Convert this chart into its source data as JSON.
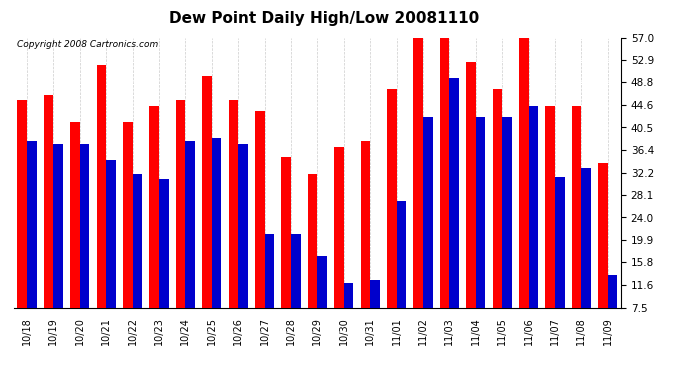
{
  "title": "Dew Point Daily High/Low 20081110",
  "copyright": "Copyright 2008 Cartronics.com",
  "categories": [
    "10/18",
    "10/19",
    "10/20",
    "10/21",
    "10/22",
    "10/23",
    "10/24",
    "10/25",
    "10/26",
    "10/27",
    "10/28",
    "10/29",
    "10/30",
    "10/31",
    "11/01",
    "11/02",
    "11/03",
    "11/04",
    "11/05",
    "11/06",
    "11/07",
    "11/08",
    "11/09"
  ],
  "highs": [
    45.5,
    46.5,
    41.5,
    52.0,
    41.5,
    44.5,
    45.5,
    50.0,
    45.5,
    43.5,
    35.0,
    32.0,
    37.0,
    38.0,
    47.5,
    57.0,
    57.0,
    52.5,
    47.5,
    57.0,
    44.5,
    44.5,
    34.0
  ],
  "lows": [
    38.0,
    37.5,
    37.5,
    34.5,
    32.0,
    31.0,
    38.0,
    38.5,
    37.5,
    21.0,
    21.0,
    17.0,
    12.0,
    12.5,
    27.0,
    42.5,
    49.5,
    42.5,
    42.5,
    44.5,
    31.5,
    33.0,
    13.5
  ],
  "ymin": 7.5,
  "ymax": 57.0,
  "yticks": [
    7.5,
    11.6,
    15.8,
    19.9,
    24.0,
    28.1,
    32.2,
    36.4,
    40.5,
    44.6,
    48.8,
    52.9,
    57.0
  ],
  "high_color": "#ff0000",
  "low_color": "#0000cc",
  "bg_color": "#ffffff",
  "bar_width": 0.36,
  "title_fontsize": 11,
  "copyright_fontsize": 6.5,
  "tick_fontsize": 7.5,
  "xtick_fontsize": 7
}
